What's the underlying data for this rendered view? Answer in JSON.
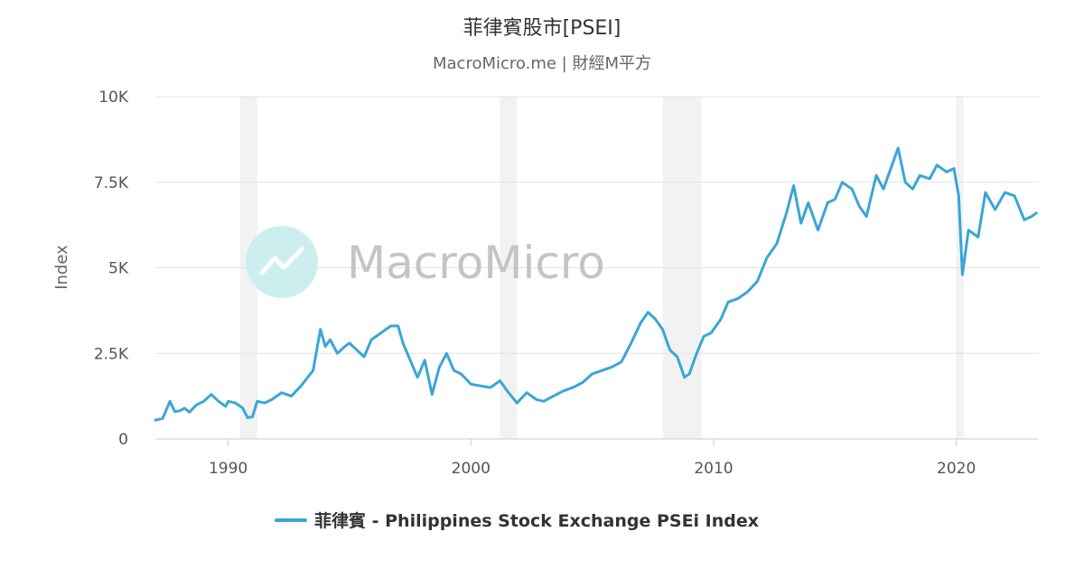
{
  "chart_data": {
    "type": "line",
    "title": "菲律賓股市[PSEI]",
    "subtitle": "MacroMicro.me | 財經M平方",
    "watermark": "MacroMicro",
    "ylabel": "Index",
    "xlabel": "",
    "xlim": [
      1987.0,
      2023.4
    ],
    "ylim": [
      0,
      10000
    ],
    "y_ticks": [
      0,
      2500,
      5000,
      7500,
      10000
    ],
    "y_tick_labels": [
      "0",
      "2.5K",
      "5K",
      "7.5K",
      "10K"
    ],
    "x_ticks": [
      1990,
      2000,
      2010,
      2020
    ],
    "x_tick_labels": [
      "1990",
      "2000",
      "2010",
      "2020"
    ],
    "grid": true,
    "legend_position": "bottom-center",
    "recession_bands": [
      [
        1990.5,
        1991.2
      ],
      [
        2001.2,
        2001.9
      ],
      [
        2007.9,
        2009.5
      ],
      [
        2020.0,
        2020.3
      ]
    ],
    "series": [
      {
        "name": "菲律賓 - Philippines Stock Exchange PSEi Index",
        "color": "#3aa6d6",
        "x": [
          1987.0,
          1987.3,
          1987.6,
          1987.8,
          1988.0,
          1988.2,
          1988.4,
          1988.7,
          1989.0,
          1989.3,
          1989.6,
          1989.9,
          1990.0,
          1990.3,
          1990.6,
          1990.8,
          1991.0,
          1991.2,
          1991.5,
          1991.8,
          1992.2,
          1992.6,
          1993.0,
          1993.5,
          1993.8,
          1994.0,
          1994.2,
          1994.5,
          1994.8,
          1995.0,
          1995.3,
          1995.6,
          1995.9,
          1996.3,
          1996.7,
          1997.0,
          1997.2,
          1997.5,
          1997.8,
          1998.1,
          1998.4,
          1998.7,
          1999.0,
          1999.3,
          1999.6,
          2000.0,
          2000.4,
          2000.8,
          2001.2,
          2001.5,
          2001.9,
          2002.3,
          2002.7,
          2003.0,
          2003.4,
          2003.8,
          2004.2,
          2004.6,
          2005.0,
          2005.4,
          2005.8,
          2006.2,
          2006.6,
          2007.0,
          2007.3,
          2007.6,
          2007.9,
          2008.2,
          2008.5,
          2008.8,
          2009.0,
          2009.3,
          2009.6,
          2009.9,
          2010.3,
          2010.6,
          2011.0,
          2011.4,
          2011.8,
          2012.2,
          2012.6,
          2013.0,
          2013.3,
          2013.6,
          2013.9,
          2014.3,
          2014.7,
          2015.0,
          2015.3,
          2015.7,
          2016.0,
          2016.3,
          2016.7,
          2017.0,
          2017.3,
          2017.6,
          2017.9,
          2018.2,
          2018.5,
          2018.9,
          2019.2,
          2019.6,
          2019.9,
          2020.1,
          2020.25,
          2020.5,
          2020.9,
          2021.2,
          2021.6,
          2022.0,
          2022.4,
          2022.8,
          2023.1,
          2023.3
        ],
        "values": [
          550,
          600,
          1100,
          800,
          820,
          900,
          780,
          1000,
          1100,
          1300,
          1100,
          950,
          1100,
          1050,
          900,
          620,
          650,
          1100,
          1050,
          1150,
          1350,
          1250,
          1550,
          2000,
          3200,
          2700,
          2900,
          2500,
          2700,
          2800,
          2600,
          2400,
          2900,
          3100,
          3300,
          3300,
          2800,
          2300,
          1800,
          2300,
          1300,
          2100,
          2500,
          2000,
          1900,
          1600,
          1550,
          1500,
          1700,
          1400,
          1050,
          1350,
          1150,
          1100,
          1250,
          1400,
          1500,
          1650,
          1900,
          2000,
          2100,
          2250,
          2800,
          3400,
          3700,
          3500,
          3200,
          2600,
          2400,
          1800,
          1900,
          2500,
          3000,
          3100,
          3500,
          4000,
          4100,
          4300,
          4600,
          5300,
          5700,
          6600,
          7400,
          6300,
          6900,
          6100,
          6900,
          7000,
          7500,
          7300,
          6800,
          6500,
          7700,
          7300,
          7900,
          8500,
          7500,
          7300,
          7700,
          7600,
          8000,
          7800,
          7900,
          7100,
          4800,
          6100,
          5900,
          7200,
          6700,
          7200,
          7100,
          6400,
          6500,
          6600
        ]
      }
    ]
  }
}
